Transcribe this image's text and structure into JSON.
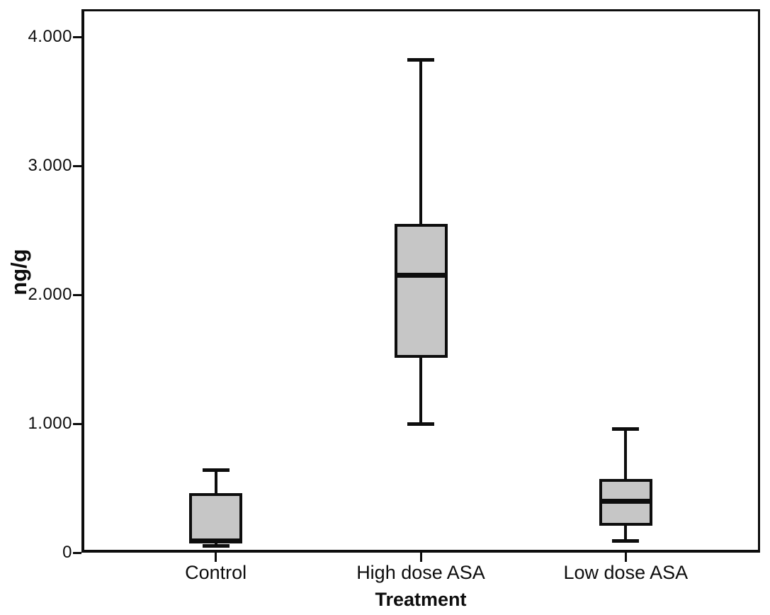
{
  "chart_data": {
    "type": "boxplot",
    "title": "",
    "xlabel": "Treatment",
    "ylabel": "ng/g",
    "categories": [
      "Control",
      "High dose ASA",
      "Low dose ASA"
    ],
    "ytick_labels": [
      "0",
      "1.000",
      "2.000",
      "3.000",
      "4.000"
    ],
    "ytick_values": [
      0,
      1,
      2,
      3,
      4
    ],
    "ylim": [
      0,
      4.21
    ],
    "grid": false,
    "legend": "none",
    "boxes": [
      {
        "category": "Control",
        "whisker_low": 0.05,
        "q1": 0.08,
        "median": 0.09,
        "q3": 0.46,
        "whisker_high": 0.64
      },
      {
        "category": "High dose ASA",
        "whisker_low": 1.0,
        "q1": 1.51,
        "median": 2.15,
        "q3": 2.55,
        "whisker_high": 3.82
      },
      {
        "category": "Low dose ASA",
        "whisker_low": 0.09,
        "q1": 0.21,
        "median": 0.4,
        "q3": 0.57,
        "whisker_high": 0.96
      }
    ],
    "colors": {
      "box_fill": "#c6c6c6",
      "line": "#0d0d0d",
      "background": "#ffffff"
    }
  }
}
